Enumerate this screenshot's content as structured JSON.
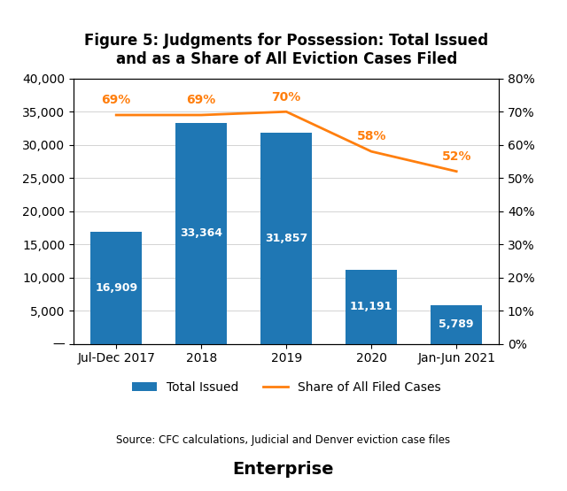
{
  "chart_data": {
    "type": "bar",
    "title": "Figure 5: Judgments for Possession: Total Issued\nand as a Share of All Eviction Cases Filed",
    "categories": [
      "Jul-Dec 2017",
      "2018",
      "2019",
      "2020",
      "Jan-Jun 2021"
    ],
    "series": [
      {
        "name": "Total Issued",
        "type": "bar",
        "values": [
          16909,
          33364,
          31857,
          11191,
          5789
        ],
        "value_labels": [
          "16,909",
          "33,364",
          "31,857",
          "11,191",
          "5,789"
        ]
      },
      {
        "name": "Share of All Filed Cases",
        "type": "line",
        "axis": "y2",
        "values": [
          69,
          69,
          70,
          58,
          52
        ],
        "value_labels": [
          "69%",
          "69%",
          "70%",
          "58%",
          "52%"
        ]
      }
    ],
    "ylim": [
      0,
      40000
    ],
    "yticks": [
      {
        "value": 0,
        "label": "—"
      },
      {
        "value": 5000,
        "label": "5,000"
      },
      {
        "value": 10000,
        "label": "10,000"
      },
      {
        "value": 15000,
        "label": "15,000"
      },
      {
        "value": 20000,
        "label": "20,000"
      },
      {
        "value": 25000,
        "label": "25,000"
      },
      {
        "value": 30000,
        "label": "30,000"
      },
      {
        "value": 35000,
        "label": "35,000"
      },
      {
        "value": 40000,
        "label": "40,000"
      }
    ],
    "y2lim": [
      0,
      80
    ],
    "y2ticks": [
      {
        "value": 0,
        "label": "0%"
      },
      {
        "value": 10,
        "label": "10%"
      },
      {
        "value": 20,
        "label": "20%"
      },
      {
        "value": 30,
        "label": "30%"
      },
      {
        "value": 40,
        "label": "40%"
      },
      {
        "value": 50,
        "label": "50%"
      },
      {
        "value": 60,
        "label": "60%"
      },
      {
        "value": 70,
        "label": "70%"
      },
      {
        "value": 80,
        "label": "80%"
      }
    ],
    "grid": true,
    "legend": "below",
    "data_labels": true,
    "annotations": [
      "Source: CFC calculations, Judicial and Denver eviction case files",
      "Enterprise"
    ]
  }
}
